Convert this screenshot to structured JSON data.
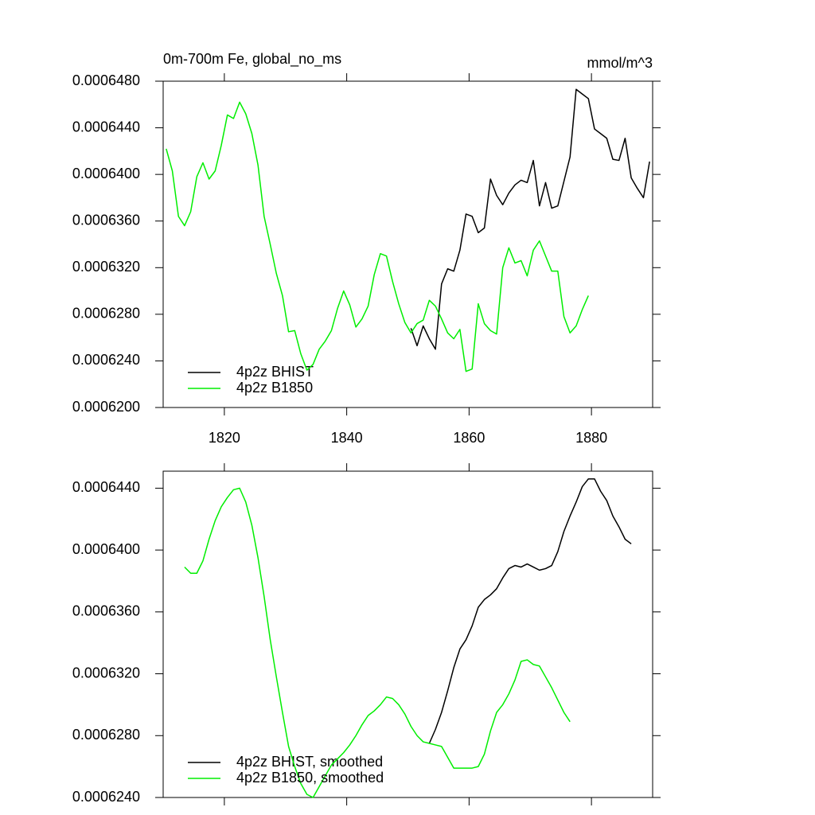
{
  "chart_data": [
    {
      "type": "line",
      "title": "0m-700m Fe, global_no_ms",
      "units": "mmol/m^3",
      "xlim": [
        1810,
        1890
      ],
      "xticks": [
        1820,
        1840,
        1860,
        1880
      ],
      "show_xtick_labels": true,
      "ylim": [
        0.00062,
        0.000648
      ],
      "yticks": [
        {
          "value": 0.00062,
          "label": "0.0006200"
        },
        {
          "value": 0.000624,
          "label": "0.0006240"
        },
        {
          "value": 0.000628,
          "label": "0.0006280"
        },
        {
          "value": 0.000632,
          "label": "0.0006320"
        },
        {
          "value": 0.000636,
          "label": "0.0006360"
        },
        {
          "value": 0.00064,
          "label": "0.0006400"
        },
        {
          "value": 0.000644,
          "label": "0.0006440"
        },
        {
          "value": 0.000648,
          "label": "0.0006480"
        }
      ],
      "grid": false,
      "legend": "lower left",
      "series": [
        {
          "name": "4p2z BHIST",
          "color": "#000000",
          "x": [
            1850.5,
            1851.5,
            1852.5,
            1853.5,
            1854.5,
            1855.5,
            1856.5,
            1857.5,
            1858.5,
            1859.5,
            1860.5,
            1861.5,
            1862.5,
            1863.5,
            1864.5,
            1865.5,
            1866.5,
            1867.5,
            1868.5,
            1869.5,
            1870.5,
            1871.5,
            1872.5,
            1873.5,
            1874.5,
            1875.5,
            1876.5,
            1877.5,
            1878.5,
            1879.5,
            1880.5,
            1881.5,
            1882.5,
            1883.5,
            1884.5,
            1885.5,
            1886.5,
            1887.5,
            1888.5,
            1889.5
          ],
          "values": [
            0.0006268,
            0.0006253,
            0.000627,
            0.0006259,
            0.000625,
            0.0006306,
            0.0006319,
            0.0006317,
            0.0006335,
            0.0006366,
            0.0006364,
            0.000635,
            0.0006354,
            0.0006396,
            0.0006382,
            0.0006374,
            0.0006384,
            0.0006391,
            0.0006395,
            0.0006393,
            0.0006412,
            0.0006373,
            0.0006393,
            0.0006371,
            0.0006373,
            0.0006394,
            0.0006415,
            0.0006473,
            0.0006469,
            0.0006465,
            0.0006439,
            0.0006435,
            0.0006431,
            0.0006413,
            0.0006412,
            0.0006431,
            0.0006397,
            0.0006388,
            0.000638,
            0.0006411
          ]
        },
        {
          "name": "4p2z B1850",
          "color": "#00ee00",
          "x": [
            1810.5,
            1811.5,
            1812.5,
            1813.5,
            1814.5,
            1815.5,
            1816.5,
            1817.5,
            1818.5,
            1819.5,
            1820.5,
            1821.5,
            1822.5,
            1823.5,
            1824.5,
            1825.5,
            1826.5,
            1827.5,
            1828.5,
            1829.5,
            1830.5,
            1831.5,
            1832.5,
            1833.5,
            1834.5,
            1835.5,
            1836.5,
            1837.5,
            1838.5,
            1839.5,
            1840.5,
            1841.5,
            1842.5,
            1843.5,
            1844.5,
            1845.5,
            1846.5,
            1847.5,
            1848.5,
            1849.5,
            1850.5,
            1851.5,
            1852.5,
            1853.5,
            1854.5,
            1855.5,
            1856.5,
            1857.5,
            1858.5,
            1859.5,
            1860.5,
            1861.5,
            1862.5,
            1863.5,
            1864.5,
            1865.5,
            1866.5,
            1867.5,
            1868.5,
            1869.5,
            1870.5,
            1871.5,
            1872.5,
            1873.5,
            1874.5,
            1875.5,
            1876.5,
            1877.5,
            1878.5,
            1879.5
          ],
          "values": [
            0.0006422,
            0.0006403,
            0.0006364,
            0.0006356,
            0.0006368,
            0.0006398,
            0.000641,
            0.0006396,
            0.0006403,
            0.0006425,
            0.0006451,
            0.0006448,
            0.0006462,
            0.0006452,
            0.0006435,
            0.0006408,
            0.0006364,
            0.000634,
            0.0006315,
            0.0006296,
            0.0006265,
            0.0006266,
            0.0006246,
            0.0006232,
            0.0006237,
            0.000625,
            0.0006257,
            0.0006266,
            0.0006285,
            0.00063,
            0.0006288,
            0.0006269,
            0.0006276,
            0.0006287,
            0.0006314,
            0.0006332,
            0.000633,
            0.0006308,
            0.0006289,
            0.0006273,
            0.0006264,
            0.0006272,
            0.0006275,
            0.0006292,
            0.0006287,
            0.0006276,
            0.0006264,
            0.0006259,
            0.0006267,
            0.0006231,
            0.0006233,
            0.0006289,
            0.0006272,
            0.0006266,
            0.0006263,
            0.000632,
            0.0006337,
            0.0006324,
            0.0006326,
            0.0006313,
            0.0006335,
            0.0006343,
            0.000633,
            0.0006317,
            0.0006317,
            0.0006278,
            0.0006264,
            0.000627,
            0.0006284,
            0.0006296
          ]
        }
      ]
    },
    {
      "type": "line",
      "xlim": [
        1810,
        1890
      ],
      "xticks": [
        1820,
        1840,
        1860,
        1880
      ],
      "show_xtick_labels": false,
      "ylim": [
        0.000624,
        0.0006451
      ],
      "yticks": [
        {
          "value": 0.000624,
          "label": "0.0006240"
        },
        {
          "value": 0.000628,
          "label": "0.0006280"
        },
        {
          "value": 0.000632,
          "label": "0.0006320"
        },
        {
          "value": 0.000636,
          "label": "0.0006360"
        },
        {
          "value": 0.00064,
          "label": "0.0006400"
        },
        {
          "value": 0.000644,
          "label": "0.0006440"
        }
      ],
      "grid": false,
      "legend": "lower left",
      "series": [
        {
          "name": "4p2z BHIST, smoothed",
          "color": "#000000",
          "x": [
            1853.5,
            1854.5,
            1855.5,
            1856.5,
            1857.5,
            1858.5,
            1859.5,
            1860.5,
            1861.5,
            1862.5,
            1863.5,
            1864.5,
            1865.5,
            1866.5,
            1867.5,
            1868.5,
            1869.5,
            1870.5,
            1871.5,
            1872.5,
            1873.5,
            1874.5,
            1875.5,
            1876.5,
            1877.5,
            1878.5,
            1879.5,
            1880.5,
            1881.5,
            1882.5,
            1883.5,
            1884.5,
            1885.5,
            1886.5
          ],
          "values": [
            0.0006275,
            0.0006284,
            0.0006295,
            0.0006309,
            0.0006324,
            0.0006336,
            0.0006342,
            0.0006351,
            0.0006363,
            0.0006368,
            0.0006371,
            0.0006375,
            0.0006382,
            0.0006388,
            0.000639,
            0.0006389,
            0.0006391,
            0.0006389,
            0.0006387,
            0.0006388,
            0.000639,
            0.0006399,
            0.0006412,
            0.0006422,
            0.0006431,
            0.0006441,
            0.0006446,
            0.0006446,
            0.0006438,
            0.0006432,
            0.0006422,
            0.0006415,
            0.0006407,
            0.0006404
          ]
        },
        {
          "name": "4p2z B1850, smoothed",
          "color": "#00ee00",
          "x": [
            1813.5,
            1814.5,
            1815.5,
            1816.5,
            1817.5,
            1818.5,
            1819.5,
            1820.5,
            1821.5,
            1822.5,
            1823.5,
            1824.5,
            1825.5,
            1826.5,
            1827.5,
            1828.5,
            1829.5,
            1830.5,
            1831.5,
            1832.5,
            1833.5,
            1834.5,
            1835.5,
            1836.5,
            1837.5,
            1838.5,
            1839.5,
            1840.5,
            1841.5,
            1842.5,
            1843.5,
            1844.5,
            1845.5,
            1846.5,
            1847.5,
            1848.5,
            1849.5,
            1850.5,
            1851.5,
            1852.5,
            1853.5,
            1854.5,
            1855.5,
            1856.5,
            1857.5,
            1858.5,
            1859.5,
            1860.5,
            1861.5,
            1862.5,
            1863.5,
            1864.5,
            1865.5,
            1866.5,
            1867.5,
            1868.5,
            1869.5,
            1870.5,
            1871.5,
            1872.5,
            1873.5,
            1874.5,
            1875.5,
            1876.5
          ],
          "values": [
            0.0006389,
            0.0006385,
            0.0006385,
            0.0006393,
            0.0006407,
            0.0006419,
            0.0006428,
            0.0006434,
            0.0006439,
            0.000644,
            0.0006431,
            0.0006416,
            0.0006395,
            0.000637,
            0.0006342,
            0.0006318,
            0.0006295,
            0.0006273,
            0.000626,
            0.0006249,
            0.0006242,
            0.000624,
            0.0006247,
            0.0006254,
            0.0006261,
            0.0006265,
            0.0006269,
            0.0006274,
            0.000628,
            0.0006287,
            0.0006293,
            0.0006296,
            0.00063,
            0.0006305,
            0.0006304,
            0.00063,
            0.0006294,
            0.0006286,
            0.000628,
            0.0006276,
            0.0006275,
            0.0006274,
            0.0006273,
            0.0006266,
            0.0006259,
            0.0006259,
            0.0006259,
            0.0006259,
            0.000626,
            0.0006268,
            0.0006283,
            0.0006295,
            0.00063,
            0.0006307,
            0.0006316,
            0.0006328,
            0.0006329,
            0.0006326,
            0.0006325,
            0.0006318,
            0.0006311,
            0.0006303,
            0.0006295,
            0.0006289
          ]
        }
      ]
    }
  ]
}
